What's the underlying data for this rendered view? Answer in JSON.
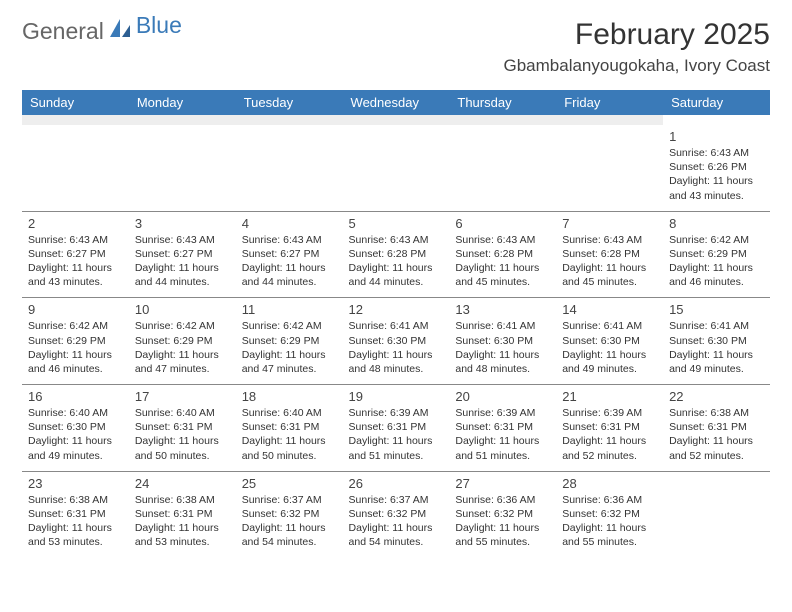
{
  "logo": {
    "part1": "General",
    "part2": "Blue"
  },
  "title": "February 2025",
  "location": "Gbambalanyougokaha, Ivory Coast",
  "colors": {
    "header_bg": "#3a7ab8",
    "header_text": "#ffffff",
    "blank_bg": "#eeeeee",
    "border": "#888888",
    "logo_blue": "#3a7ab8",
    "text": "#333333"
  },
  "dayNames": [
    "Sunday",
    "Monday",
    "Tuesday",
    "Wednesday",
    "Thursday",
    "Friday",
    "Saturday"
  ],
  "weeks": [
    [
      null,
      null,
      null,
      null,
      null,
      null,
      {
        "n": "1",
        "sr": "Sunrise: 6:43 AM",
        "ss": "Sunset: 6:26 PM",
        "dl": "Daylight: 11 hours and 43 minutes."
      }
    ],
    [
      {
        "n": "2",
        "sr": "Sunrise: 6:43 AM",
        "ss": "Sunset: 6:27 PM",
        "dl": "Daylight: 11 hours and 43 minutes."
      },
      {
        "n": "3",
        "sr": "Sunrise: 6:43 AM",
        "ss": "Sunset: 6:27 PM",
        "dl": "Daylight: 11 hours and 44 minutes."
      },
      {
        "n": "4",
        "sr": "Sunrise: 6:43 AM",
        "ss": "Sunset: 6:27 PM",
        "dl": "Daylight: 11 hours and 44 minutes."
      },
      {
        "n": "5",
        "sr": "Sunrise: 6:43 AM",
        "ss": "Sunset: 6:28 PM",
        "dl": "Daylight: 11 hours and 44 minutes."
      },
      {
        "n": "6",
        "sr": "Sunrise: 6:43 AM",
        "ss": "Sunset: 6:28 PM",
        "dl": "Daylight: 11 hours and 45 minutes."
      },
      {
        "n": "7",
        "sr": "Sunrise: 6:43 AM",
        "ss": "Sunset: 6:28 PM",
        "dl": "Daylight: 11 hours and 45 minutes."
      },
      {
        "n": "8",
        "sr": "Sunrise: 6:42 AM",
        "ss": "Sunset: 6:29 PM",
        "dl": "Daylight: 11 hours and 46 minutes."
      }
    ],
    [
      {
        "n": "9",
        "sr": "Sunrise: 6:42 AM",
        "ss": "Sunset: 6:29 PM",
        "dl": "Daylight: 11 hours and 46 minutes."
      },
      {
        "n": "10",
        "sr": "Sunrise: 6:42 AM",
        "ss": "Sunset: 6:29 PM",
        "dl": "Daylight: 11 hours and 47 minutes."
      },
      {
        "n": "11",
        "sr": "Sunrise: 6:42 AM",
        "ss": "Sunset: 6:29 PM",
        "dl": "Daylight: 11 hours and 47 minutes."
      },
      {
        "n": "12",
        "sr": "Sunrise: 6:41 AM",
        "ss": "Sunset: 6:30 PM",
        "dl": "Daylight: 11 hours and 48 minutes."
      },
      {
        "n": "13",
        "sr": "Sunrise: 6:41 AM",
        "ss": "Sunset: 6:30 PM",
        "dl": "Daylight: 11 hours and 48 minutes."
      },
      {
        "n": "14",
        "sr": "Sunrise: 6:41 AM",
        "ss": "Sunset: 6:30 PM",
        "dl": "Daylight: 11 hours and 49 minutes."
      },
      {
        "n": "15",
        "sr": "Sunrise: 6:41 AM",
        "ss": "Sunset: 6:30 PM",
        "dl": "Daylight: 11 hours and 49 minutes."
      }
    ],
    [
      {
        "n": "16",
        "sr": "Sunrise: 6:40 AM",
        "ss": "Sunset: 6:30 PM",
        "dl": "Daylight: 11 hours and 49 minutes."
      },
      {
        "n": "17",
        "sr": "Sunrise: 6:40 AM",
        "ss": "Sunset: 6:31 PM",
        "dl": "Daylight: 11 hours and 50 minutes."
      },
      {
        "n": "18",
        "sr": "Sunrise: 6:40 AM",
        "ss": "Sunset: 6:31 PM",
        "dl": "Daylight: 11 hours and 50 minutes."
      },
      {
        "n": "19",
        "sr": "Sunrise: 6:39 AM",
        "ss": "Sunset: 6:31 PM",
        "dl": "Daylight: 11 hours and 51 minutes."
      },
      {
        "n": "20",
        "sr": "Sunrise: 6:39 AM",
        "ss": "Sunset: 6:31 PM",
        "dl": "Daylight: 11 hours and 51 minutes."
      },
      {
        "n": "21",
        "sr": "Sunrise: 6:39 AM",
        "ss": "Sunset: 6:31 PM",
        "dl": "Daylight: 11 hours and 52 minutes."
      },
      {
        "n": "22",
        "sr": "Sunrise: 6:38 AM",
        "ss": "Sunset: 6:31 PM",
        "dl": "Daylight: 11 hours and 52 minutes."
      }
    ],
    [
      {
        "n": "23",
        "sr": "Sunrise: 6:38 AM",
        "ss": "Sunset: 6:31 PM",
        "dl": "Daylight: 11 hours and 53 minutes."
      },
      {
        "n": "24",
        "sr": "Sunrise: 6:38 AM",
        "ss": "Sunset: 6:31 PM",
        "dl": "Daylight: 11 hours and 53 minutes."
      },
      {
        "n": "25",
        "sr": "Sunrise: 6:37 AM",
        "ss": "Sunset: 6:32 PM",
        "dl": "Daylight: 11 hours and 54 minutes."
      },
      {
        "n": "26",
        "sr": "Sunrise: 6:37 AM",
        "ss": "Sunset: 6:32 PM",
        "dl": "Daylight: 11 hours and 54 minutes."
      },
      {
        "n": "27",
        "sr": "Sunrise: 6:36 AM",
        "ss": "Sunset: 6:32 PM",
        "dl": "Daylight: 11 hours and 55 minutes."
      },
      {
        "n": "28",
        "sr": "Sunrise: 6:36 AM",
        "ss": "Sunset: 6:32 PM",
        "dl": "Daylight: 11 hours and 55 minutes."
      },
      null
    ]
  ]
}
